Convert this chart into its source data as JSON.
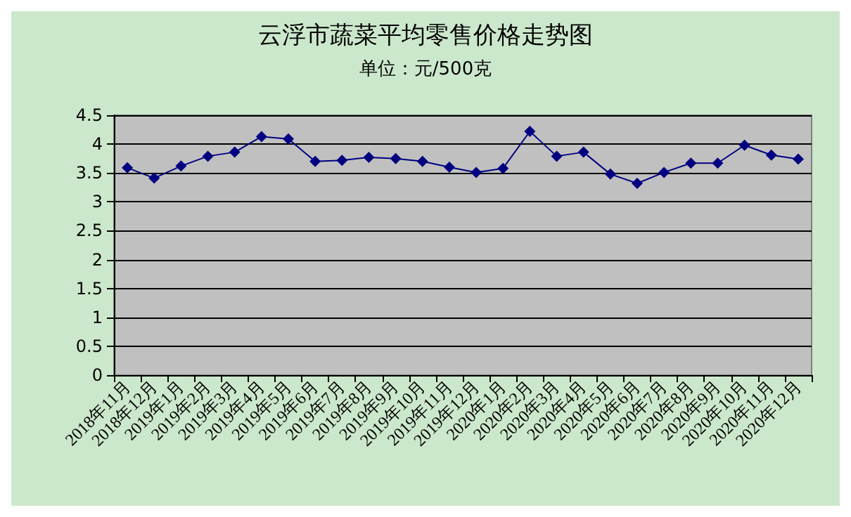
{
  "chart_data": {
    "type": "line",
    "title": "云浮市蔬菜平均零售价格走势图",
    "subtitle": "单位：元/500克",
    "categories": [
      "2018年11月",
      "2018年12月",
      "2019年1月",
      "2019年2月",
      "2019年3月",
      "2019年4月",
      "2019年5月",
      "2019年6月",
      "2019年7月",
      "2019年8月",
      "2019年9月",
      "2019年10月",
      "2019年11月",
      "2019年12月",
      "2020年1月",
      "2020年2月",
      "2020年3月",
      "2020年4月",
      "2020年5月",
      "2020年6月",
      "2020年7月",
      "2020年8月",
      "2020年9月",
      "2020年10月",
      "2020年11月",
      "2020年12月"
    ],
    "series": [
      {
        "color": "#000080",
        "values": [
          3.59,
          3.41,
          3.62,
          3.79,
          3.86,
          4.13,
          4.09,
          3.7,
          3.72,
          3.77,
          3.75,
          3.7,
          3.6,
          3.51,
          3.58,
          4.22,
          3.79,
          3.86,
          3.48,
          3.32,
          3.51,
          3.67,
          3.67,
          3.98,
          3.81,
          3.74
        ]
      }
    ],
    "ylim": [
      0,
      4.5
    ],
    "yticks": [
      0,
      0.5,
      1,
      1.5,
      2,
      2.5,
      3,
      3.5,
      4,
      4.5
    ],
    "grid": "y",
    "marker": "diamond",
    "line_style": "solid"
  }
}
